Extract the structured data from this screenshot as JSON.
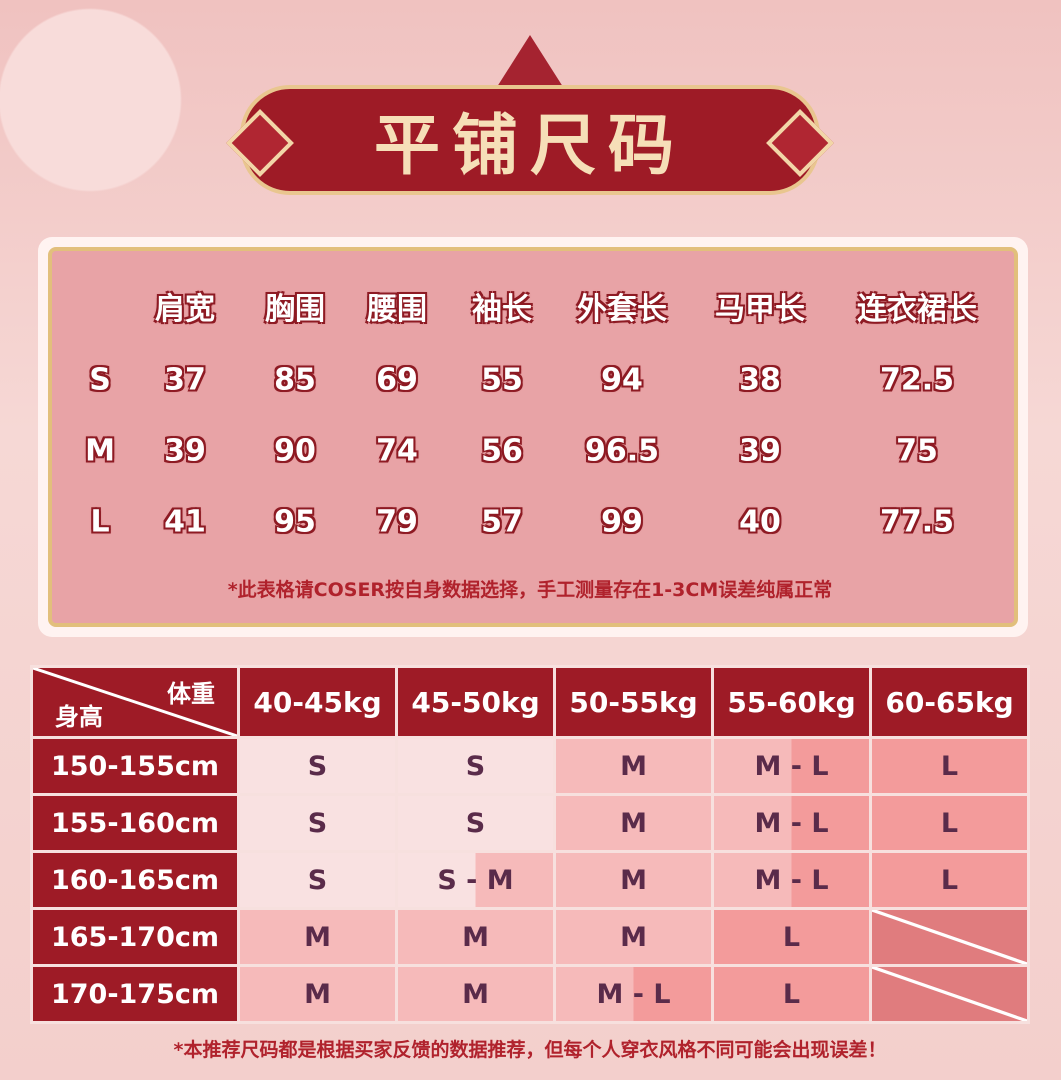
{
  "title": "平铺尺码",
  "measure_table": {
    "headers": [
      "肩宽",
      "胸围",
      "腰围",
      "袖长",
      "外套长",
      "马甲长",
      "连衣裙长"
    ],
    "rows": [
      {
        "size": "S",
        "values": [
          "37",
          "85",
          "69",
          "55",
          "94",
          "38",
          "72.5"
        ]
      },
      {
        "size": "M",
        "values": [
          "39",
          "90",
          "74",
          "56",
          "96.5",
          "39",
          "75"
        ]
      },
      {
        "size": "L",
        "values": [
          "41",
          "95",
          "79",
          "57",
          "99",
          "40",
          "77.5"
        ]
      }
    ],
    "note": "*此表格请COSER按自身数据选择，手工测量存在1-3CM误差纯属正常"
  },
  "recommend_table": {
    "corner_weight": "体重",
    "corner_height": "身高",
    "weights": [
      "40-45kg",
      "45-50kg",
      "50-55kg",
      "55-60kg",
      "60-65kg"
    ],
    "rows": [
      {
        "height": "150-155cm",
        "sizes": [
          "S",
          "S",
          "M",
          "M - L",
          "L"
        ]
      },
      {
        "height": "155-160cm",
        "sizes": [
          "S",
          "S",
          "M",
          "M - L",
          "L"
        ]
      },
      {
        "height": "160-165cm",
        "sizes": [
          "S",
          "S - M",
          "M",
          "M - L",
          "L"
        ]
      },
      {
        "height": "165-170cm",
        "sizes": [
          "M",
          "M",
          "M",
          "L",
          ""
        ]
      },
      {
        "height": "170-175cm",
        "sizes": [
          "M",
          "M",
          "M - L",
          "L",
          ""
        ]
      }
    ],
    "note": "*本推荐尺码都是根据买家反馈的数据推荐，但每个人穿衣风格不同可能会出现误差！"
  },
  "colors": {
    "S": "#f9e1e1",
    "M": "#f6baba",
    "L": "#f39b9b",
    "empty": "#e07c7e",
    "header": "#9e1b26"
  }
}
